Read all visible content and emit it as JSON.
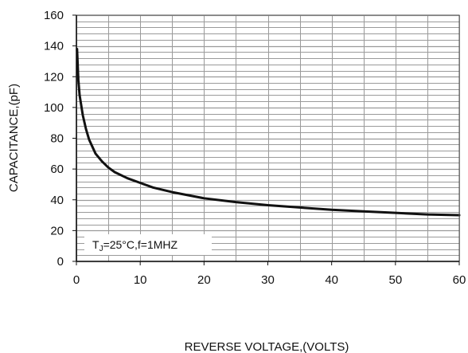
{
  "chart_data": {
    "type": "line",
    "title": "",
    "xlabel": "REVERSE VOLTAGE,(VOLTS)",
    "ylabel": "CAPACITANCE,(pF)",
    "xlim": [
      0,
      60
    ],
    "ylim": [
      0,
      160
    ],
    "xticks": [
      0,
      10,
      20,
      30,
      40,
      50,
      60
    ],
    "yticks": [
      0,
      20,
      40,
      60,
      80,
      100,
      120,
      140,
      160
    ],
    "x_gridline_step": 5,
    "y_gridline_step": 4,
    "grid": true,
    "grid_color": "#9a9a9a",
    "line_color": "#111111",
    "annotation": {
      "prefix": "T",
      "subscript": "J",
      "suffix": "=25°C,f=1MHZ"
    },
    "series": [
      {
        "x": [
          0.1,
          0.3,
          0.5,
          1,
          1.5,
          2,
          3,
          4,
          5,
          6,
          8,
          10,
          12,
          15,
          20,
          25,
          30,
          35,
          40,
          45,
          50,
          55,
          60
        ],
        "y": [
          138,
          118,
          108,
          95,
          86,
          79,
          70,
          65,
          61,
          58,
          54,
          51,
          48,
          45,
          41,
          38.5,
          36.5,
          35,
          33.5,
          32.5,
          31.5,
          30.5,
          30
        ]
      }
    ]
  }
}
